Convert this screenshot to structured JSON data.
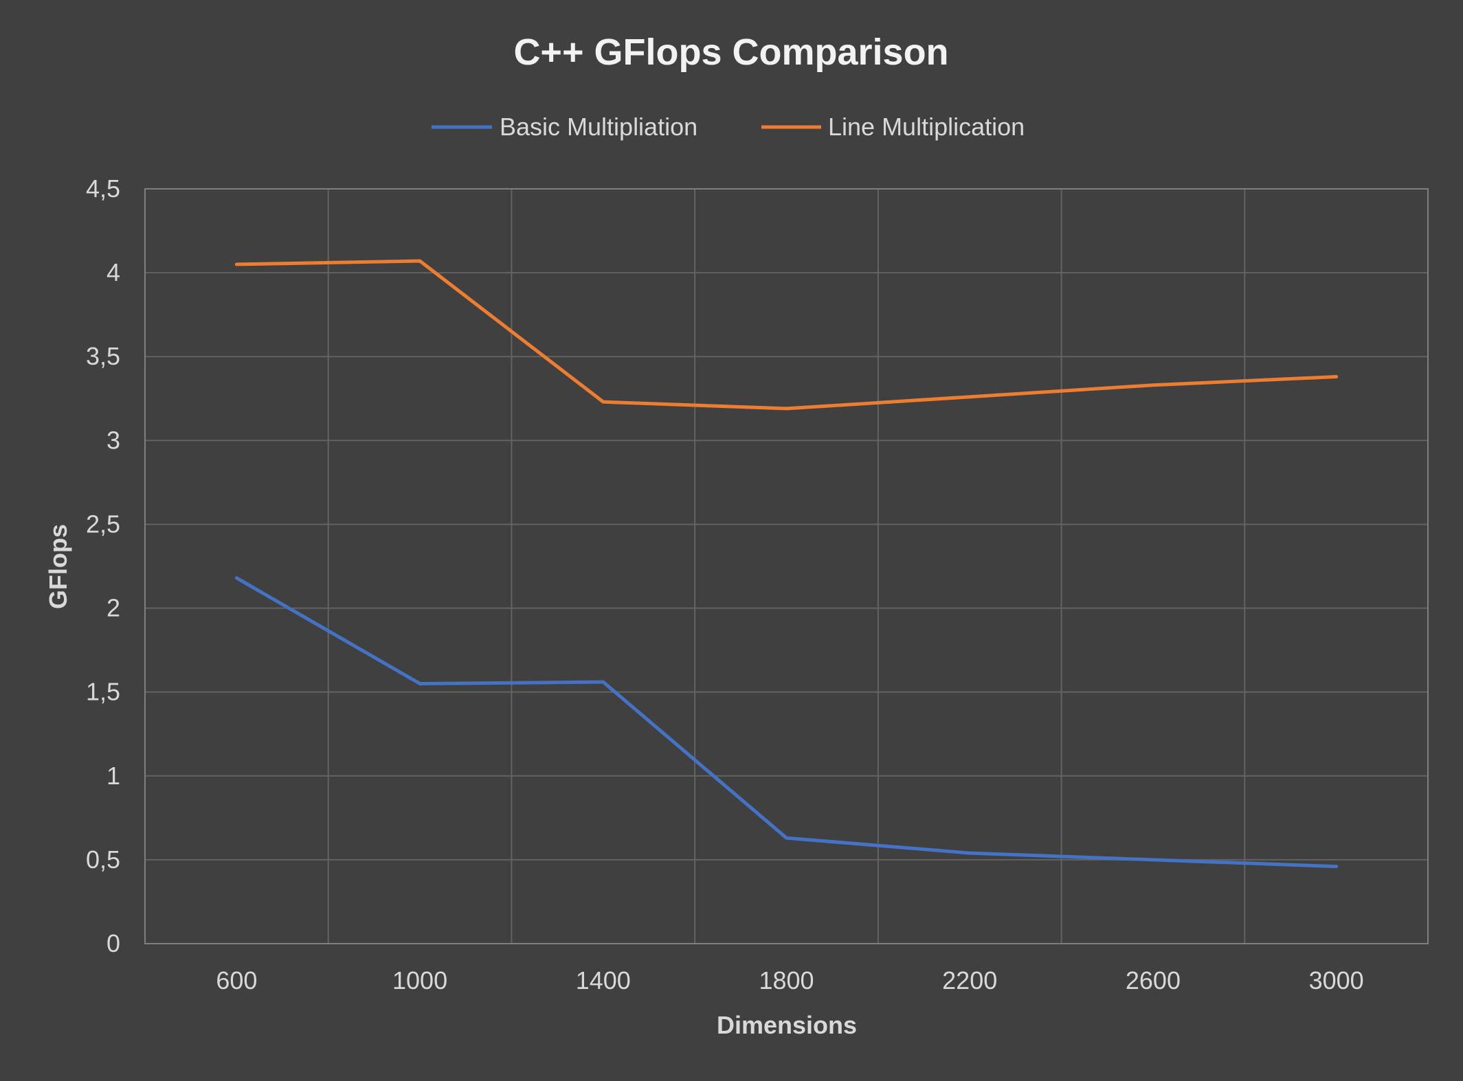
{
  "chart_data": {
    "type": "line",
    "title": "C++ GFlops Comparison",
    "xlabel": "Dimensions",
    "ylabel": "GFlops",
    "categories": [
      "600",
      "1000",
      "1400",
      "1800",
      "2200",
      "2600",
      "3000"
    ],
    "y_ticks": [
      "0",
      "0,5",
      "1",
      "1,5",
      "2",
      "2,5",
      "3",
      "3,5",
      "4",
      "4,5"
    ],
    "ylim": [
      0,
      4.5
    ],
    "grid": true,
    "legend_position": "top",
    "series": [
      {
        "name": "Basic Multipliation",
        "color": "#4472c4",
        "values": [
          2.18,
          1.55,
          1.56,
          0.63,
          0.54,
          0.5,
          0.46
        ]
      },
      {
        "name": "Line Multiplication",
        "color": "#ed7d31",
        "values": [
          4.05,
          4.07,
          3.23,
          3.19,
          3.26,
          3.33,
          3.38
        ]
      }
    ]
  }
}
